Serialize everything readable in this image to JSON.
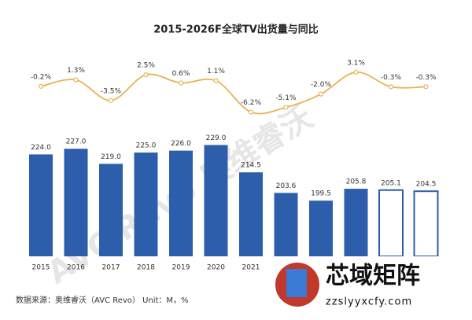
{
  "chart_data": {
    "type": "bar",
    "title": "2015-2026F全球TV出货量与同比",
    "categories": [
      "2015",
      "2016",
      "2017",
      "2018",
      "2019",
      "2020",
      "2021",
      null,
      null,
      null,
      null,
      null
    ],
    "values": [
      224.0,
      227.0,
      219.0,
      225.0,
      226.0,
      229.0,
      214.5,
      203.6,
      199.5,
      205.8,
      205.1,
      204.5
    ],
    "value_labels": [
      "224.0",
      "227.0",
      "219.0",
      "225.0",
      "226.0",
      "229.0",
      "214.5",
      "203.6",
      "199.5",
      "205.8",
      "205.1",
      "204.5"
    ],
    "color": "#2c5eab",
    "bar_styles": [
      "solid",
      "solid",
      "solid",
      "solid",
      "solid",
      "solid",
      "solid",
      "solid",
      "solid",
      "solid",
      "outline",
      "outline"
    ],
    "ylim": [
      170,
      240
    ],
    "line": {
      "type": "line",
      "color": "#e9b352",
      "axis": "y2",
      "values": [
        -0.2,
        1.3,
        -3.5,
        2.5,
        0.6,
        1.1,
        -6.2,
        -5.1,
        -2.0,
        3.1,
        -0.3,
        -0.3
      ],
      "value_labels": [
        "-0.2%",
        "1.3%",
        "-3.5%",
        "2.5%",
        "0.6%",
        "1.1%",
        "-6.2%",
        "-5.1%",
        "-2.0%",
        "3.1%",
        "-0.3%",
        "-0.3%"
      ]
    },
    "y2lim": [
      -9.4,
      7.1
    ],
    "source": "数据来源：奥维睿沃（AVC Revo） Unit：M，%",
    "watermark": "AVC Revo 奥维睿沃",
    "logo": {
      "name": "芯域矩阵",
      "url": "zzslyyxcfy.com"
    }
  }
}
